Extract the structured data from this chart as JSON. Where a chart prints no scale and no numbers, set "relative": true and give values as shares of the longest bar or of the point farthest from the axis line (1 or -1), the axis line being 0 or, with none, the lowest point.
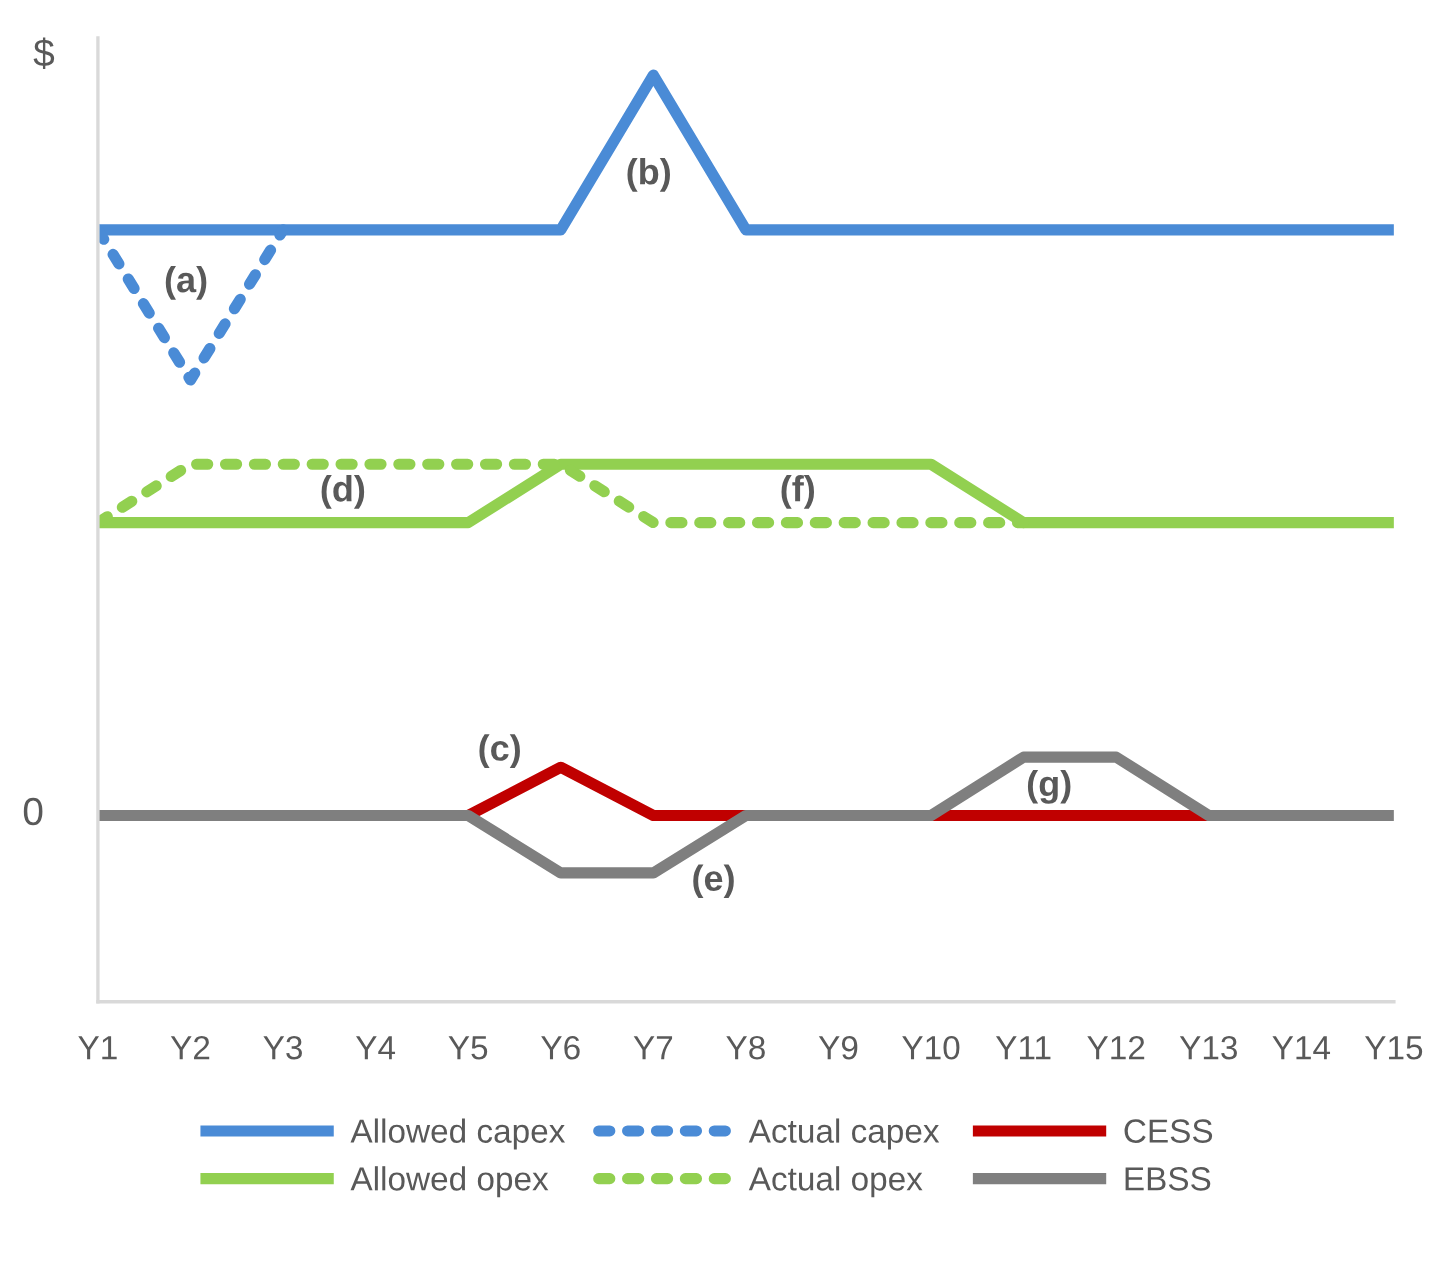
{
  "chart_data": {
    "type": "line",
    "relative": true,
    "ylabel": "$",
    "categories": [
      "Y1",
      "Y2",
      "Y3",
      "Y4",
      "Y5",
      "Y6",
      "Y7",
      "Y8",
      "Y9",
      "Y10",
      "Y11",
      "Y12",
      "Y13",
      "Y14",
      "Y15"
    ],
    "series": [
      {
        "name": "Allowed capex",
        "color": "#4a8bd6",
        "line_style": "solid",
        "values": [
          0.833,
          0.833,
          0.833,
          0.833,
          0.833,
          0.833,
          1,
          0.833,
          0.833,
          0.833,
          0.833,
          0.833,
          0.833,
          0.833,
          0.833
        ]
      },
      {
        "name": "Allowed opex",
        "color": "#92d050",
        "line_style": "solid",
        "values": [
          0.517,
          0.517,
          0.517,
          0.517,
          0.517,
          0.58,
          0.58,
          0.58,
          0.58,
          0.58,
          0.517,
          0.517,
          0.517,
          0.517,
          0.517
        ]
      },
      {
        "name": "Actual capex",
        "color": "#4a8bd6",
        "line_style": "dotted",
        "values": [
          0.833,
          0.671,
          0.833,
          null,
          null,
          null,
          null,
          null,
          null,
          null,
          null,
          null,
          null,
          null,
          null
        ]
      },
      {
        "name": "Actual opex",
        "color": "#92d050",
        "line_style": "dotted",
        "values": [
          0.517,
          0.58,
          0.58,
          0.58,
          0.58,
          0.58,
          0.517,
          0.517,
          0.517,
          0.517,
          0.517,
          null,
          null,
          null,
          null
        ]
      },
      {
        "name": "CESS",
        "color": "#c00000",
        "line_style": "solid",
        "values": [
          null,
          null,
          null,
          null,
          0.201,
          0.253,
          0.201,
          0.201,
          null,
          0.201,
          0.201,
          0.201,
          0.201,
          null,
          null
        ]
      },
      {
        "name": "EBSS",
        "color": "#7f7f7f",
        "line_style": "solid",
        "values": [
          0.201,
          0.201,
          0.201,
          0.201,
          0.201,
          0.139,
          0.139,
          0.201,
          0.201,
          0.201,
          0.264,
          0.264,
          0.201,
          0.201,
          0.201
        ]
      }
    ],
    "annotations": [
      "0",
      "(a)",
      "(b)",
      "(c)",
      "(d)",
      "(e)",
      "(f)",
      "(g)"
    ],
    "legend": "bottom",
    "grid": false,
    "marker": "none"
  }
}
